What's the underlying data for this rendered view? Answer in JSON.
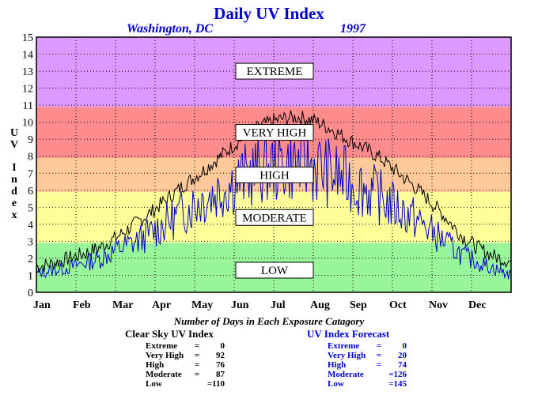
{
  "chart_data": {
    "type": "line",
    "title": "Daily UV Index",
    "subtitle_location": "Washington, DC",
    "subtitle_year": "1997",
    "ylabel": "UV Index",
    "ylim": [
      0,
      15
    ],
    "yticks": [
      "0",
      "1",
      "2",
      "3",
      "4",
      "5",
      "6",
      "7",
      "8",
      "9",
      "10",
      "11",
      "12",
      "13",
      "14",
      "15"
    ],
    "xticks": [
      "Jan",
      "Feb",
      "Mar",
      "Apr",
      "May",
      "Jun",
      "Jul",
      "Aug",
      "Sep",
      "Oct",
      "Nov",
      "Dec"
    ],
    "grid": true,
    "bands": [
      {
        "label": "LOW",
        "from": 0,
        "to": 2.9,
        "color": "#99f599"
      },
      {
        "label": "MODERATE",
        "from": 2.9,
        "to": 5.9,
        "color": "#ffff99"
      },
      {
        "label": "HIGH",
        "from": 5.9,
        "to": 7.9,
        "color": "#ffc999"
      },
      {
        "label": "VERY HIGH",
        "from": 7.9,
        "to": 10.9,
        "color": "#ff8c8c"
      },
      {
        "label": "EXTREME",
        "from": 10.9,
        "to": 15,
        "color": "#dd99ff"
      }
    ],
    "series": [
      {
        "name": "Clear Sky UV Index",
        "color": "#000000",
        "values": [
          1.5,
          1.7,
          2.0,
          2.3,
          2.7,
          3.3,
          4.0,
          4.7,
          5.5,
          6.3,
          7.0,
          7.8,
          8.6,
          9.4,
          9.9,
          10.2,
          10.3,
          10.1,
          9.6,
          9.0,
          8.5,
          7.9,
          7.1,
          6.3,
          5.4,
          4.4,
          3.3,
          2.6,
          2.1,
          1.8
        ]
      },
      {
        "name": "UV Index Forecast",
        "color": "#0000cc",
        "values": [
          1.2,
          1.4,
          1.6,
          1.9,
          2.2,
          2.8,
          3.2,
          3.8,
          4.5,
          5.2,
          5.9,
          6.4,
          7.0,
          7.6,
          8.0,
          8.2,
          8.3,
          8.1,
          7.6,
          7.2,
          6.7,
          6.1,
          5.4,
          4.8,
          4.0,
          3.2,
          2.4,
          1.9,
          1.5,
          1.1
        ]
      }
    ]
  },
  "table_title": "Number of Days in Each Exposure Catagory",
  "clear_sky_table": {
    "title": "Clear Sky UV Index",
    "rows": [
      {
        "label": "Extreme",
        "value": "0"
      },
      {
        "label": "Very High",
        "value": "92"
      },
      {
        "label": "High",
        "value": "76"
      },
      {
        "label": "Moderate",
        "value": "87"
      },
      {
        "label": "Low",
        "value": "=110"
      }
    ]
  },
  "forecast_table": {
    "title": "UV Index Forecast",
    "rows": [
      {
        "label": "Extreme",
        "value": "0"
      },
      {
        "label": "Very High",
        "value": "20"
      },
      {
        "label": "High",
        "value": "74"
      },
      {
        "label": "Moderate",
        "value": "=126"
      },
      {
        "label": "Low",
        "value": "=145"
      }
    ]
  }
}
